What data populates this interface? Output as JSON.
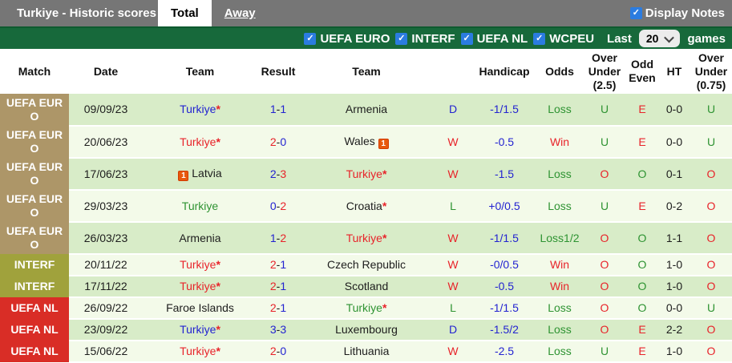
{
  "titlebar": {
    "title": "Turkiye - Historic scores",
    "tabs": [
      {
        "label": "Total",
        "active": true
      },
      {
        "label": "Away",
        "active": false
      }
    ],
    "display_notes": {
      "label": "Display Notes",
      "checked": true
    }
  },
  "filterbar": {
    "filters": [
      {
        "label": "UEFA EURO",
        "checked": true
      },
      {
        "label": "INTERF",
        "checked": true
      },
      {
        "label": "UEFA NL",
        "checked": true
      },
      {
        "label": "WCPEU",
        "checked": true
      }
    ],
    "last_label": "Last",
    "games_count": "20",
    "games_label": "games"
  },
  "colors": {
    "red_text": "#e8232a",
    "blue_text": "#2323d1",
    "green_text": "#2e9332",
    "black_text": "#1d1d1d",
    "row_odd": "#d8ecc8",
    "row_even": "#f3fae9",
    "checkbox_blue": "#2b7ce0",
    "filterbar_green": "#17693b",
    "titlebar_gray": "#767676",
    "competition_bg": {
      "UEFA EURO": "#ad9668",
      "INTERF": "#a0a23c",
      "UEFA NL": "#d92d26"
    }
  },
  "table": {
    "headers": [
      "Match",
      "Date",
      "Team",
      "Result",
      "Team",
      "",
      "Handicap",
      "Odds",
      "Over Under (2.5)",
      "Odd Even",
      "HT",
      "Over Under (0.75)"
    ],
    "rows": [
      {
        "competition": "UEFA EURO",
        "date": "09/09/23",
        "home": {
          "name": "Turkiye",
          "color": "blue",
          "star": true,
          "card": null
        },
        "score": {
          "home": "1",
          "away": "1",
          "home_color": "blue",
          "away_color": "blue"
        },
        "away": {
          "name": "Armenia",
          "color": "black",
          "star": false,
          "card": null
        },
        "result": {
          "text": "D",
          "color": "blue"
        },
        "handicap": "-1/1.5",
        "odds": {
          "text": "Loss",
          "color": "green"
        },
        "over_under_25": {
          "text": "U",
          "color": "green"
        },
        "odd_even": {
          "text": "E",
          "color": "red"
        },
        "ht": "0-0",
        "over_under_075": {
          "text": "U",
          "color": "green"
        }
      },
      {
        "competition": "UEFA EURO",
        "date": "20/06/23",
        "home": {
          "name": "Turkiye",
          "color": "red",
          "star": true,
          "card": null
        },
        "score": {
          "home": "2",
          "away": "0",
          "home_color": "red",
          "away_color": "blue"
        },
        "away": {
          "name": "Wales",
          "color": "black",
          "star": false,
          "card": "after"
        },
        "result": {
          "text": "W",
          "color": "red"
        },
        "handicap": "-0.5",
        "odds": {
          "text": "Win",
          "color": "red"
        },
        "over_under_25": {
          "text": "U",
          "color": "green"
        },
        "odd_even": {
          "text": "E",
          "color": "red"
        },
        "ht": "0-0",
        "over_under_075": {
          "text": "U",
          "color": "green"
        }
      },
      {
        "competition": "UEFA EURO",
        "date": "17/06/23",
        "home": {
          "name": "Latvia",
          "color": "black",
          "star": false,
          "card": "before"
        },
        "score": {
          "home": "2",
          "away": "3",
          "home_color": "blue",
          "away_color": "red"
        },
        "away": {
          "name": "Turkiye",
          "color": "red",
          "star": true,
          "card": null
        },
        "result": {
          "text": "W",
          "color": "red"
        },
        "handicap": "-1.5",
        "odds": {
          "text": "Loss",
          "color": "green"
        },
        "over_under_25": {
          "text": "O",
          "color": "red"
        },
        "odd_even": {
          "text": "O",
          "color": "green"
        },
        "ht": "0-1",
        "over_under_075": {
          "text": "O",
          "color": "red"
        }
      },
      {
        "competition": "UEFA EURO",
        "date": "29/03/23",
        "home": {
          "name": "Turkiye",
          "color": "green",
          "star": false,
          "card": null
        },
        "score": {
          "home": "0",
          "away": "2",
          "home_color": "blue",
          "away_color": "red"
        },
        "away": {
          "name": "Croatia",
          "color": "black",
          "star": true,
          "card": null
        },
        "result": {
          "text": "L",
          "color": "green"
        },
        "handicap": "+0/0.5",
        "odds": {
          "text": "Loss",
          "color": "green"
        },
        "over_under_25": {
          "text": "U",
          "color": "green"
        },
        "odd_even": {
          "text": "E",
          "color": "red"
        },
        "ht": "0-2",
        "over_under_075": {
          "text": "O",
          "color": "red"
        }
      },
      {
        "competition": "UEFA EURO",
        "date": "26/03/23",
        "home": {
          "name": "Armenia",
          "color": "black",
          "star": false,
          "card": null
        },
        "score": {
          "home": "1",
          "away": "2",
          "home_color": "blue",
          "away_color": "red"
        },
        "away": {
          "name": "Turkiye",
          "color": "red",
          "star": true,
          "card": null
        },
        "result": {
          "text": "W",
          "color": "red"
        },
        "handicap": "-1/1.5",
        "odds": {
          "text": "Loss1/2",
          "color": "green"
        },
        "over_under_25": {
          "text": "O",
          "color": "red"
        },
        "odd_even": {
          "text": "O",
          "color": "green"
        },
        "ht": "1-1",
        "over_under_075": {
          "text": "O",
          "color": "red"
        }
      },
      {
        "competition": "INTERF",
        "date": "20/11/22",
        "home": {
          "name": "Turkiye",
          "color": "red",
          "star": true,
          "card": null
        },
        "score": {
          "home": "2",
          "away": "1",
          "home_color": "red",
          "away_color": "blue"
        },
        "away": {
          "name": "Czech Republic",
          "color": "black",
          "star": false,
          "card": null
        },
        "result": {
          "text": "W",
          "color": "red"
        },
        "handicap": "-0/0.5",
        "odds": {
          "text": "Win",
          "color": "red"
        },
        "over_under_25": {
          "text": "O",
          "color": "red"
        },
        "odd_even": {
          "text": "O",
          "color": "green"
        },
        "ht": "1-0",
        "over_under_075": {
          "text": "O",
          "color": "red"
        }
      },
      {
        "competition": "INTERF",
        "date": "17/11/22",
        "home": {
          "name": "Turkiye",
          "color": "red",
          "star": true,
          "card": null
        },
        "score": {
          "home": "2",
          "away": "1",
          "home_color": "red",
          "away_color": "blue"
        },
        "away": {
          "name": "Scotland",
          "color": "black",
          "star": false,
          "card": null
        },
        "result": {
          "text": "W",
          "color": "red"
        },
        "handicap": "-0.5",
        "odds": {
          "text": "Win",
          "color": "red"
        },
        "over_under_25": {
          "text": "O",
          "color": "red"
        },
        "odd_even": {
          "text": "O",
          "color": "green"
        },
        "ht": "1-0",
        "over_under_075": {
          "text": "O",
          "color": "red"
        }
      },
      {
        "competition": "UEFA NL",
        "date": "26/09/22",
        "home": {
          "name": "Faroe Islands",
          "color": "black",
          "star": false,
          "card": null
        },
        "score": {
          "home": "2",
          "away": "1",
          "home_color": "red",
          "away_color": "blue"
        },
        "away": {
          "name": "Turkiye",
          "color": "green",
          "star": true,
          "card": null
        },
        "result": {
          "text": "L",
          "color": "green"
        },
        "handicap": "-1/1.5",
        "odds": {
          "text": "Loss",
          "color": "green"
        },
        "over_under_25": {
          "text": "O",
          "color": "red"
        },
        "odd_even": {
          "text": "O",
          "color": "green"
        },
        "ht": "0-0",
        "over_under_075": {
          "text": "U",
          "color": "green"
        }
      },
      {
        "competition": "UEFA NL",
        "date": "23/09/22",
        "home": {
          "name": "Turkiye",
          "color": "blue",
          "star": true,
          "card": null
        },
        "score": {
          "home": "3",
          "away": "3",
          "home_color": "blue",
          "away_color": "blue"
        },
        "away": {
          "name": "Luxembourg",
          "color": "black",
          "star": false,
          "card": null
        },
        "result": {
          "text": "D",
          "color": "blue"
        },
        "handicap": "-1.5/2",
        "odds": {
          "text": "Loss",
          "color": "green"
        },
        "over_under_25": {
          "text": "O",
          "color": "red"
        },
        "odd_even": {
          "text": "E",
          "color": "red"
        },
        "ht": "2-2",
        "over_under_075": {
          "text": "O",
          "color": "red"
        }
      },
      {
        "competition": "UEFA NL",
        "date": "15/06/22",
        "home": {
          "name": "Turkiye",
          "color": "red",
          "star": true,
          "card": null
        },
        "score": {
          "home": "2",
          "away": "0",
          "home_color": "red",
          "away_color": "blue"
        },
        "away": {
          "name": "Lithuania",
          "color": "black",
          "star": false,
          "card": null
        },
        "result": {
          "text": "W",
          "color": "red"
        },
        "handicap": "-2.5",
        "odds": {
          "text": "Loss",
          "color": "green"
        },
        "over_under_25": {
          "text": "U",
          "color": "green"
        },
        "odd_even": {
          "text": "E",
          "color": "red"
        },
        "ht": "1-0",
        "over_under_075": {
          "text": "O",
          "color": "red"
        }
      }
    ]
  }
}
